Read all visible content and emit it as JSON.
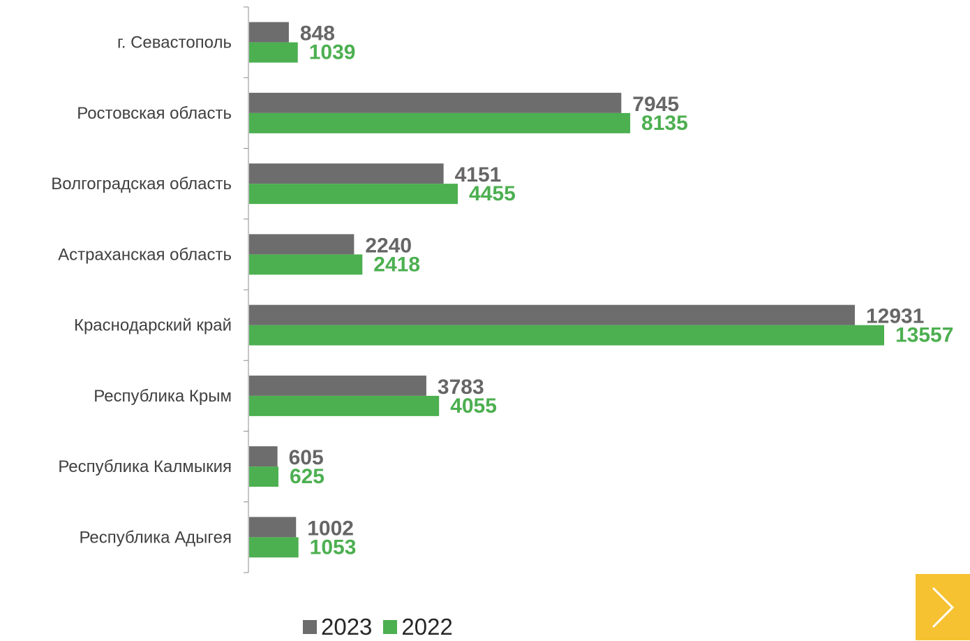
{
  "chart_data": {
    "type": "bar",
    "orientation": "horizontal",
    "categories": [
      "г. Севастополь",
      "Ростовская область",
      "Волгоградская область",
      "Астраханская область",
      "Краснодарский край",
      "Республика Крым",
      "Республика Калмыкия",
      "Республика Адыгея"
    ],
    "series": [
      {
        "name": "2023",
        "color": "#6d6d6d",
        "values": [
          848,
          7945,
          4151,
          2240,
          12931,
          3783,
          605,
          1002
        ]
      },
      {
        "name": "2022",
        "color": "#4caf50",
        "values": [
          1039,
          8135,
          4455,
          2418,
          13557,
          4055,
          625,
          1053
        ]
      }
    ],
    "title": "",
    "xlabel": "",
    "ylabel": "",
    "xlim": [
      0,
      13557
    ],
    "grid": false,
    "legend_position": "bottom"
  },
  "legend": {
    "items": [
      {
        "label": "2023",
        "color": "#6d6d6d"
      },
      {
        "label": "2022",
        "color": "#4caf50"
      }
    ]
  },
  "navigation": {
    "next_icon": "chevron-right-icon",
    "accent_color": "#f6c231"
  }
}
